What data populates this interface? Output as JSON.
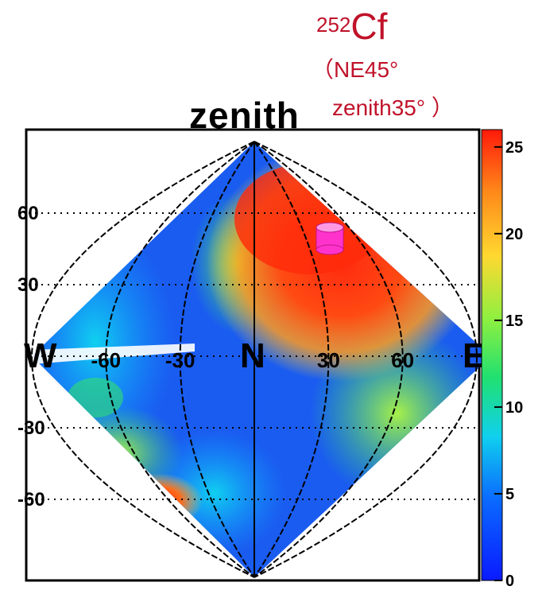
{
  "source": {
    "isotope_mass": "252",
    "element": "Cf",
    "direction": "（NE45°",
    "zenith_label": "zenith35° ）"
  },
  "chart_data": {
    "type": "heatmap",
    "title": "zenith",
    "projection": "equal-area sky map (zenith at centre top)",
    "x_ticks": [
      "-60",
      "-30",
      "30",
      "60"
    ],
    "x_tick_values": [
      -60,
      -30,
      30,
      60
    ],
    "y_ticks": [
      "60",
      "30",
      "-30",
      "-60"
    ],
    "y_tick_values": [
      60,
      30,
      -30,
      -60
    ],
    "compass": {
      "west": "W",
      "north": "N",
      "east": "E"
    },
    "colorbar": {
      "ticks": [
        "0",
        "5",
        "10",
        "15",
        "20",
        "25"
      ],
      "tick_values": [
        0,
        5,
        10,
        15,
        20,
        25
      ],
      "range": [
        0,
        26
      ]
    },
    "grid": true,
    "hotspots": [
      {
        "label": "upper-right region",
        "value": 24
      },
      {
        "label": "lower-left region",
        "value": 23
      }
    ],
    "source_marker": {
      "azimuth": 45,
      "zenith": 35,
      "marker": "cylinder",
      "color": "#ff33cc"
    }
  }
}
